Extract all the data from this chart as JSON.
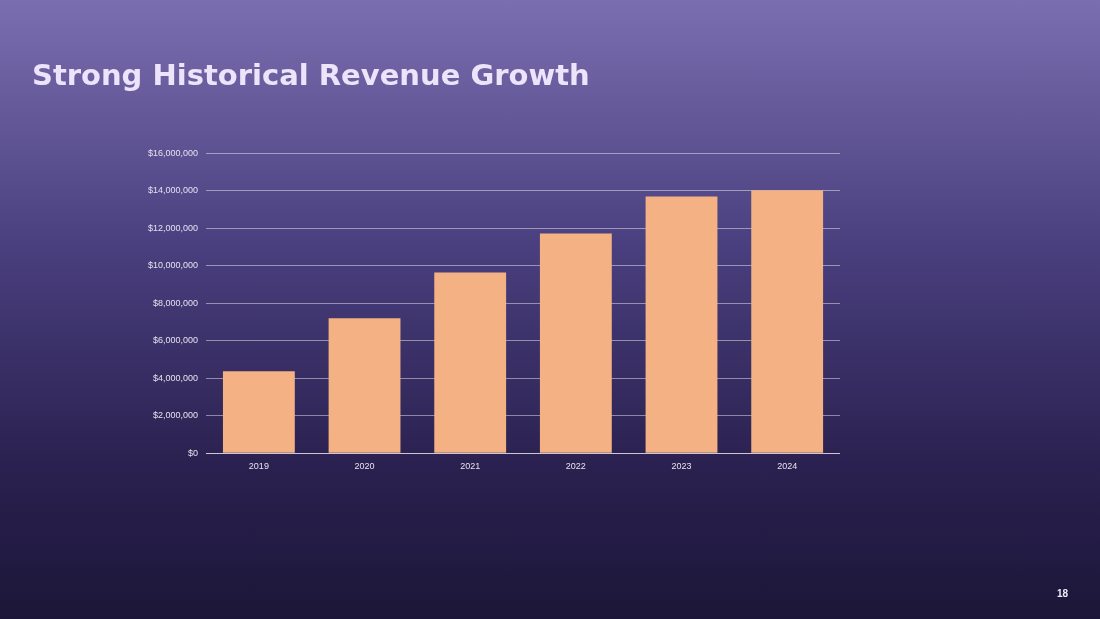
{
  "chart_data": {
    "type": "bar",
    "title": "Strong Historical Revenue Growth",
    "categories": [
      "2019",
      "2020",
      "2021",
      "2022",
      "2023",
      "2024"
    ],
    "values": [
      4370000,
      7200000,
      9650000,
      11730000,
      13700000,
      14030000
    ],
    "color": "#f4b183",
    "ylim": [
      0,
      16000000
    ],
    "yticks": [
      {
        "value": 0,
        "label": "$0"
      },
      {
        "value": 2000000,
        "label": "$2,000,000"
      },
      {
        "value": 4000000,
        "label": "$4,000,000"
      },
      {
        "value": 6000000,
        "label": "$6,000,000"
      },
      {
        "value": 8000000,
        "label": "$8,000,000"
      },
      {
        "value": 10000000,
        "label": "$10,000,000"
      },
      {
        "value": 12000000,
        "label": "$12,000,000"
      },
      {
        "value": 14000000,
        "label": "$14,000,000"
      },
      {
        "value": 16000000,
        "label": "$16,000,000"
      }
    ],
    "grid": "y",
    "annotations": [
      "18"
    ]
  }
}
